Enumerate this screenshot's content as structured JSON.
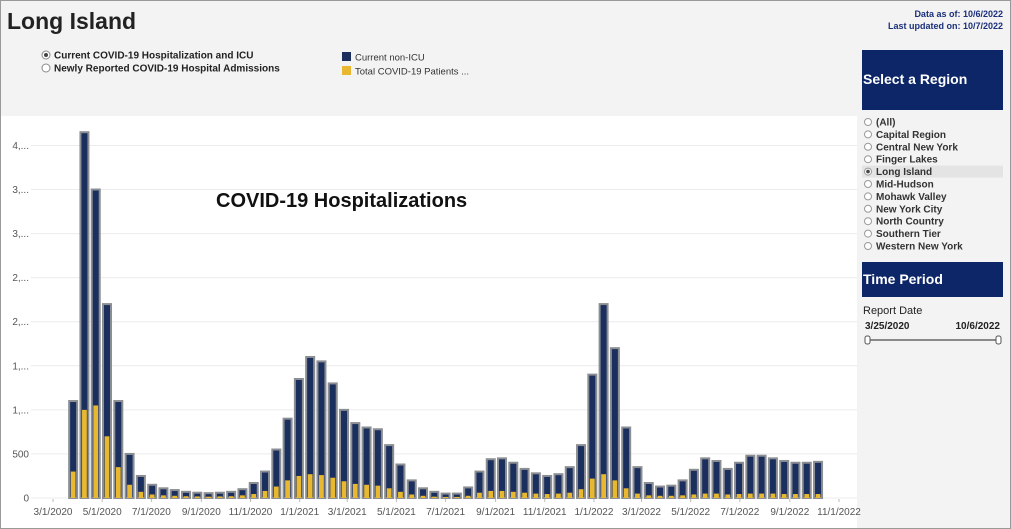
{
  "header": {
    "title": "Long Island",
    "data_as_of": "Data as of: 10/6/2022",
    "last_updated": "Last updated on: 10/7/2022"
  },
  "measure_options": [
    "Current COVID-19 Hospitalization and ICU",
    "Newly Reported COVID-19 Hospital Admissions"
  ],
  "selected_measure": 0,
  "region_panel": {
    "title": "Select a Region",
    "regions": [
      "(All)",
      "Capital Region",
      "Central New York",
      "Finger Lakes",
      "Long Island",
      "Mid-Hudson",
      "Mohawk Valley",
      "New York City",
      "North Country",
      "Southern Tier",
      "Western New York"
    ],
    "selected": 4
  },
  "time_panel": {
    "title": "Time Period",
    "label": "Report Date",
    "start": "3/25/2020",
    "end": "10/6/2022"
  },
  "chart_data": {
    "type": "bar",
    "title": "COVID-19 Hospitalizations",
    "x": [
      "3/26/2020",
      "4/9/2020",
      "4/23/2020",
      "5/7/2020",
      "5/21/2020",
      "6/4/2020",
      "6/18/2020",
      "7/2/2020",
      "7/16/2020",
      "7/30/2020",
      "8/13/2020",
      "8/27/2020",
      "9/10/2020",
      "9/24/2020",
      "10/8/2020",
      "10/22/2020",
      "11/5/2020",
      "11/19/2020",
      "12/3/2020",
      "12/17/2020",
      "12/31/2020",
      "1/14/2021",
      "1/28/2021",
      "2/11/2021",
      "2/25/2021",
      "3/11/2021",
      "3/25/2021",
      "4/8/2021",
      "4/22/2021",
      "5/6/2021",
      "5/20/2021",
      "6/3/2021",
      "6/17/2021",
      "7/1/2021",
      "7/15/2021",
      "7/29/2021",
      "8/12/2021",
      "8/26/2021",
      "9/9/2021",
      "9/23/2021",
      "10/7/2021",
      "10/21/2021",
      "11/4/2021",
      "11/18/2021",
      "12/2/2021",
      "12/16/2021",
      "12/30/2021",
      "1/13/2022",
      "1/27/2022",
      "2/10/2022",
      "2/24/2022",
      "3/10/2022",
      "3/24/2022",
      "4/7/2022",
      "4/21/2022",
      "5/5/2022",
      "5/19/2022",
      "6/2/2022",
      "6/16/2022",
      "6/30/2022",
      "7/14/2022",
      "7/28/2022",
      "8/11/2022",
      "8/25/2022",
      "9/8/2022",
      "9/22/2022",
      "10/6/2022"
    ],
    "series": [
      {
        "name": "Current non-ICU",
        "color": "#1b2f5e",
        "values": [
          1100,
          4150,
          3500,
          2200,
          1100,
          500,
          250,
          150,
          110,
          90,
          70,
          60,
          55,
          60,
          70,
          100,
          170,
          300,
          550,
          900,
          1350,
          1600,
          1550,
          1300,
          1000,
          850,
          800,
          780,
          600,
          380,
          200,
          110,
          70,
          50,
          50,
          120,
          300,
          440,
          450,
          400,
          330,
          280,
          250,
          270,
          350,
          600,
          1400,
          2200,
          1700,
          800,
          350,
          170,
          130,
          140,
          200,
          320,
          450,
          420,
          330,
          400,
          480,
          480,
          450,
          420,
          400,
          400,
          410
        ]
      },
      {
        "name": "Total COVID-19 Patients ...",
        "color": "#e8b830",
        "values": [
          300,
          1000,
          1050,
          700,
          350,
          150,
          70,
          40,
          30,
          25,
          20,
          18,
          15,
          18,
          20,
          30,
          45,
          80,
          130,
          200,
          250,
          270,
          260,
          230,
          190,
          160,
          150,
          140,
          110,
          70,
          40,
          25,
          15,
          12,
          12,
          25,
          60,
          80,
          80,
          70,
          60,
          50,
          45,
          50,
          60,
          100,
          220,
          270,
          200,
          110,
          50,
          30,
          25,
          25,
          30,
          40,
          50,
          50,
          40,
          45,
          50,
          50,
          50,
          45,
          45,
          45,
          45
        ]
      }
    ],
    "xlim": [
      "3/1/2020",
      "11/1/2022"
    ],
    "xticks": [
      "3/1/2020",
      "5/1/2020",
      "7/1/2020",
      "9/1/2020",
      "11/1/2020",
      "1/1/2021",
      "3/1/2021",
      "5/1/2021",
      "7/1/2021",
      "9/1/2021",
      "11/1/2021",
      "1/1/2022",
      "3/1/2022",
      "5/1/2022",
      "7/1/2022",
      "9/1/2022",
      "11/1/2022"
    ],
    "ylim": [
      0,
      4300
    ],
    "yticks": [
      0,
      500,
      {
        "value": 1000,
        "label": "1,..."
      },
      {
        "value": 1500,
        "label": "1,..."
      },
      {
        "value": 2000,
        "label": "2,..."
      },
      {
        "value": 2500,
        "label": "2,..."
      },
      {
        "value": 3000,
        "label": "3,..."
      },
      {
        "value": 3500,
        "label": "3,..."
      },
      {
        "value": 4000,
        "label": "4,..."
      }
    ],
    "grid": true
  }
}
